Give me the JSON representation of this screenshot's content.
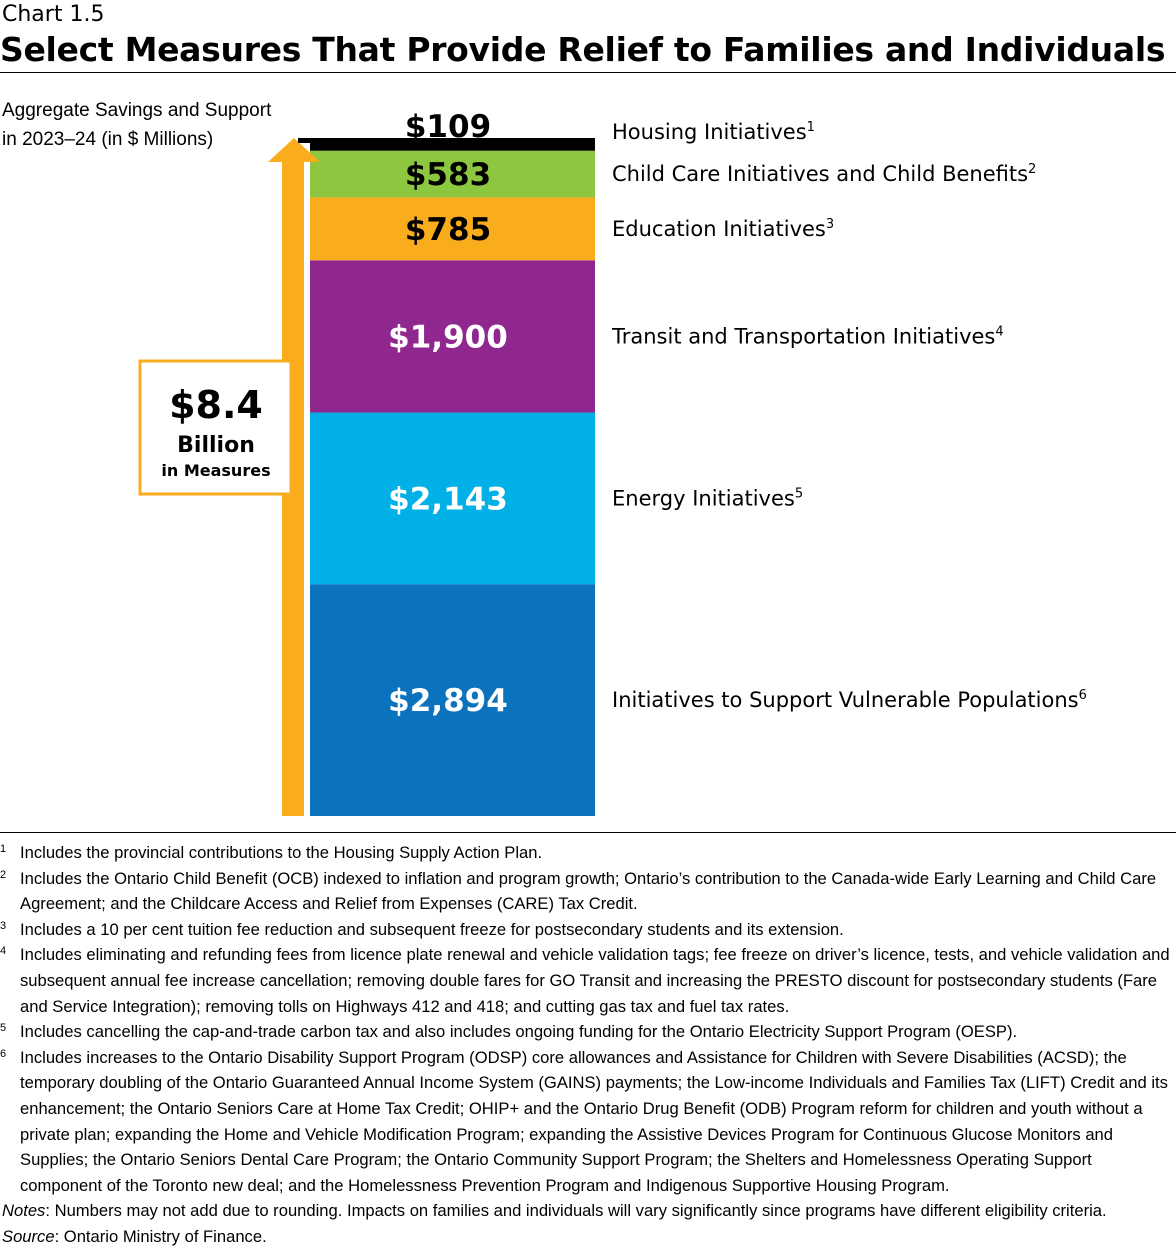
{
  "chart_label": "Chart 1.5",
  "title": "Select Measures That Provide Relief to Families and Individuals",
  "ylabel_line1": "Aggregate Savings and Support",
  "ylabel_line2": "in 2023–24 (in $ Millions)",
  "total_box": {
    "amount": "$8.4",
    "unit": "Billion",
    "caption": "in Measures"
  },
  "chart_data": {
    "type": "bar",
    "stacked": true,
    "total": 8.4,
    "categories": [
      "Aggregate Savings and Support in 2023–24"
    ],
    "series": [
      {
        "name": "Initiatives to Support Vulnerable Populations",
        "value": 2894,
        "value_label": "$2,894",
        "footnote": "6",
        "color": "#0b72be",
        "text_color": "#ffffff"
      },
      {
        "name": "Energy Initiatives",
        "value": 2143,
        "value_label": "$2,143",
        "footnote": "5",
        "color": "#00b0e6",
        "text_color": "#ffffff"
      },
      {
        "name": "Transit and Transportation Initiatives",
        "value": 1900,
        "value_label": "$1,900",
        "footnote": "4",
        "color": "#8f278f",
        "text_color": "#ffffff"
      },
      {
        "name": "Education Initiatives",
        "value": 785,
        "value_label": "$785",
        "footnote": "3",
        "color": "#f9ac1c",
        "text_color": "#000000"
      },
      {
        "name": "Child Care Initiatives and Child Benefits",
        "value": 583,
        "value_label": "$583",
        "footnote": "2",
        "color": "#8dc63f",
        "text_color": "#000000"
      },
      {
        "name": "Housing Initiatives",
        "value": 109,
        "value_label": "$109",
        "footnote": "1",
        "color": "#000000",
        "text_color": "#000000"
      }
    ],
    "arrow_color": "#f9ac1c"
  },
  "footnotes": [
    {
      "num": "1",
      "text": "Includes the provincial contributions to the Housing Supply Action Plan."
    },
    {
      "num": "2",
      "text": "Includes the Ontario Child Benefit (OCB) indexed to inflation and program growth; Ontario’s contribution to the Canada-wide Early Learning and Child Care Agreement; and the Childcare Access and Relief from Expenses (CARE) Tax Credit."
    },
    {
      "num": "3",
      "text": "Includes a 10 per cent tuition fee reduction and subsequent freeze for postsecondary students and its extension."
    },
    {
      "num": "4",
      "text": "Includes eliminating and refunding fees from licence plate renewal and vehicle validation tags; fee freeze on driver’s licence, tests, and vehicle validation and subsequent annual fee increase cancellation; removing double fares for GO Transit and increasing the PRESTO discount for postsecondary students (Fare and Service Integration); removing tolls on Highways 412 and 418; and cutting gas tax and fuel tax rates."
    },
    {
      "num": "5",
      "text": "Includes cancelling the cap-and-trade carbon tax and also includes ongoing funding for the Ontario Electricity Support Program (OESP)."
    },
    {
      "num": "6",
      "text": "Includes increases to the Ontario Disability Support Program (ODSP) core allowances and Assistance for Children with Severe Disabilities (ACSD); the temporary doubling of the Ontario Guaranteed Annual Income System (GAINS) payments; the Low-income Individuals and Families Tax (LIFT) Credit and its enhancement; the Ontario Seniors Care at Home Tax Credit; OHIP+ and the Ontario Drug Benefit (ODB) Program reform for children and youth without a private plan; expanding the Home and Vehicle Modification Program; expanding the Assistive Devices Program for Continuous Glucose Monitors and Supplies; the Ontario Seniors Dental Care Program; the Ontario Community Support Program; the Shelters and Homelessness Operating Support component of the Toronto new deal; and the Homelessness Prevention Program and Indigenous Supportive Housing Program."
    }
  ],
  "notes_label": "Notes",
  "notes_text": ": Numbers may not add due to rounding. Impacts on families and individuals will vary significantly since programs have different eligibility criteria.",
  "source_label": "Source",
  "source_text": ": Ontario Ministry of Finance."
}
